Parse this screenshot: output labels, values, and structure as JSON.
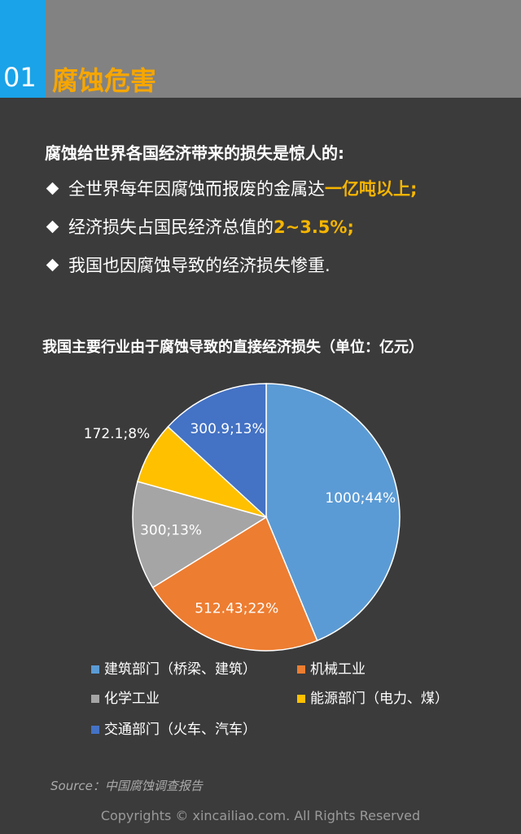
{
  "header": {
    "number": "01",
    "title": "腐蚀危害"
  },
  "intro": {
    "heading": "腐蚀给世界各国经济带来的损失是惊人的:",
    "bullets": [
      {
        "text": "全世界每年因腐蚀而报废的金属达",
        "highlight": "一亿吨以上;"
      },
      {
        "text": "经济损失占国民经济总值的",
        "highlight": "2~3.5%;"
      },
      {
        "text": "我国也因腐蚀导致的经济损失惨重."
      }
    ]
  },
  "chart_data": {
    "type": "pie",
    "title": "我国主要行业由于腐蚀导致的直接经济损失（单位：亿元）",
    "categories": [
      "建筑部门（桥梁、建筑）",
      "机械工业",
      "化学工业",
      "能源部门（电力、煤）",
      "交通部门（火车、汽车）"
    ],
    "values": [
      1000,
      512.43,
      300,
      172.1,
      300.9
    ],
    "value_labels": [
      "1000;44%",
      "512.43;22%",
      "300;13%",
      "172.1;8%",
      "300.9;13%"
    ],
    "colors": [
      "#5b9bd5",
      "#ed7d31",
      "#a5a5a5",
      "#ffc000",
      "#4472c4"
    ]
  },
  "source": "Source：中国腐蚀调查报告",
  "copyright": "Copyrights © xincailiao.com. All Rights Reserved"
}
